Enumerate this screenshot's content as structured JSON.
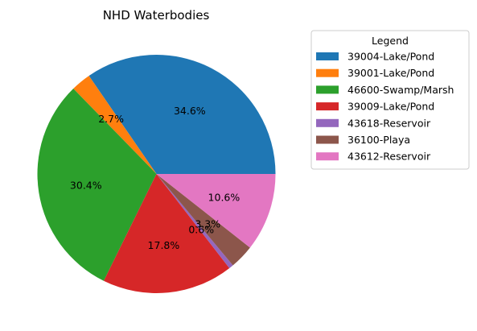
{
  "chart_data": {
    "type": "pie",
    "title": "NHD Waterbodies",
    "legend_title": "Legend",
    "legend_position": "right",
    "start_angle_deg": 0,
    "direction": "counterclockwise",
    "slices": [
      {
        "label": "39004-Lake/Pond",
        "value": 34.6,
        "pct_label": "34.6%",
        "color": "#1f77b4"
      },
      {
        "label": "39001-Lake/Pond",
        "value": 2.7,
        "pct_label": "2.7%",
        "color": "#ff7f0e"
      },
      {
        "label": "46600-Swamp/Marsh",
        "value": 30.4,
        "pct_label": "30.4%",
        "color": "#2ca02c"
      },
      {
        "label": "39009-Lake/Pond",
        "value": 17.8,
        "pct_label": "17.8%",
        "color": "#d62728"
      },
      {
        "label": "43618-Reservoir",
        "value": 0.6,
        "pct_label": "0.6%",
        "color": "#9467bd"
      },
      {
        "label": "36100-Playa",
        "value": 3.3,
        "pct_label": "3.3%",
        "color": "#8c564b"
      },
      {
        "label": "43612-Reservoir",
        "value": 10.6,
        "pct_label": "10.6%",
        "color": "#e377c2"
      }
    ]
  }
}
